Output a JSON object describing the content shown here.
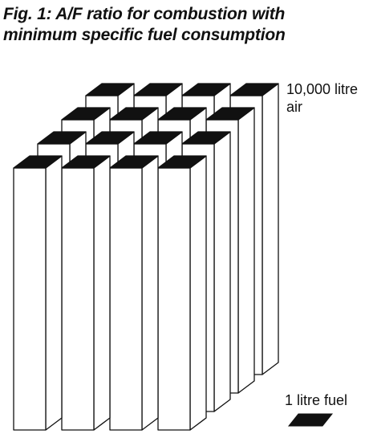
{
  "figure": {
    "title_line1": "Fig. 1: A/F ratio for combustion with",
    "title_line2": "minimum specific fuel consumption"
  },
  "legend": {
    "air_label": "10,000 litre air",
    "fuel_label": "1 litre fuel"
  },
  "grid": {
    "rows": 4,
    "columns": 4
  },
  "colors": {
    "ink": "#111111",
    "face": "#ffffff",
    "top": "#111111"
  }
}
